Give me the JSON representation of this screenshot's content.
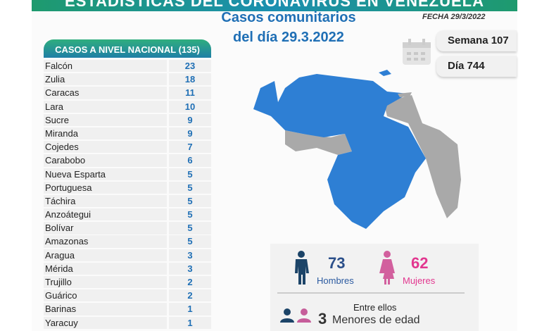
{
  "banner_title": "ESTADÍSTICAS DEL CORONAVIRUS EN VENEZUELA",
  "title_line1": "Casos comunitarios",
  "title_line2": "del día 29.3.2022",
  "fecha": "FECHA 29/3/2022",
  "semana": "Semana 107",
  "dia": "Día 744",
  "table_header": "CASOS A NIVEL NACIONAL  (135)",
  "rows": [
    {
      "state": "Falcón",
      "cases": "23"
    },
    {
      "state": "Zulia",
      "cases": "18"
    },
    {
      "state": "Caracas",
      "cases": "11"
    },
    {
      "state": "Lara",
      "cases": "10"
    },
    {
      "state": "Sucre",
      "cases": "9"
    },
    {
      "state": "Miranda",
      "cases": "9"
    },
    {
      "state": "Cojedes",
      "cases": "7"
    },
    {
      "state": "Carabobo",
      "cases": "6"
    },
    {
      "state": "Nueva Esparta",
      "cases": "5"
    },
    {
      "state": "Portuguesa",
      "cases": "5"
    },
    {
      "state": "Táchira",
      "cases": "5"
    },
    {
      "state": "Anzoátegui",
      "cases": "5"
    },
    {
      "state": "Bolívar",
      "cases": "5"
    },
    {
      "state": "Amazonas",
      "cases": "5"
    },
    {
      "state": "Aragua",
      "cases": "3"
    },
    {
      "state": "Mérida",
      "cases": "3"
    },
    {
      "state": "Trujillo",
      "cases": "2"
    },
    {
      "state": "Guárico",
      "cases": "2"
    },
    {
      "state": "Barinas",
      "cases": "1"
    },
    {
      "state": "Yaracuy",
      "cases": "1"
    }
  ],
  "men_count": "73",
  "men_label": "Hombres",
  "women_count": "62",
  "women_label": "Mujeres",
  "entre_ellos": "Entre ellos",
  "minors_count": "3",
  "minors_label": "Menores de edad",
  "colors": {
    "blue": "#1f6fb5",
    "map_blue": "#2e7fd4",
    "map_grey": "#a9a9a9",
    "pink": "#e2378f",
    "navy": "#1c4468"
  }
}
